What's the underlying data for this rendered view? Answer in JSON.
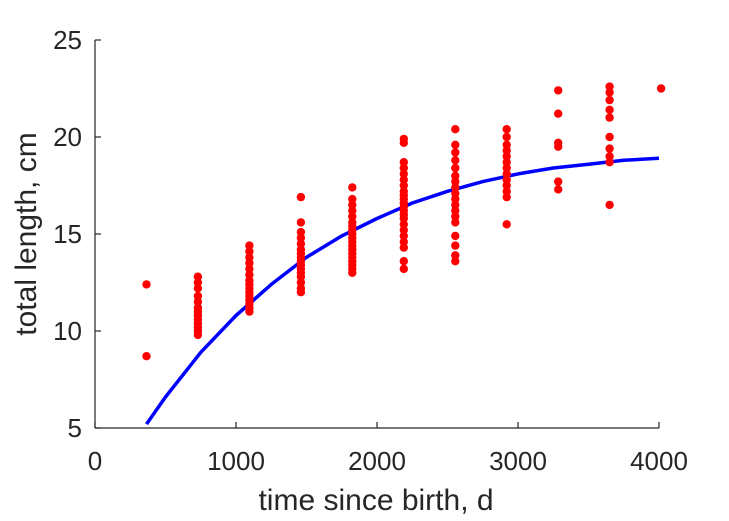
{
  "chart_data": {
    "type": "scatter",
    "title": "",
    "xlabel": "time since birth, d",
    "ylabel": "total length, cm",
    "xlim": [
      0,
      4000
    ],
    "ylim": [
      5,
      25
    ],
    "xticks": [
      0,
      1000,
      2000,
      3000,
      4000
    ],
    "yticks": [
      5,
      10,
      15,
      20,
      25
    ],
    "grid": false,
    "colors": {
      "points": "#ff0000",
      "curve": "#0000ff",
      "axis": "#262626"
    },
    "series": [
      {
        "kind": "scatter",
        "points": [
          [
            365,
            12.4
          ],
          [
            365,
            8.7
          ],
          [
            730,
            12.8
          ],
          [
            730,
            12.5
          ],
          [
            730,
            12.2
          ],
          [
            730,
            11.8
          ],
          [
            730,
            11.5
          ],
          [
            730,
            11.2
          ],
          [
            730,
            11.0
          ],
          [
            730,
            10.8
          ],
          [
            730,
            10.6
          ],
          [
            730,
            10.4
          ],
          [
            730,
            10.2
          ],
          [
            730,
            10.0
          ],
          [
            730,
            9.8
          ],
          [
            1095,
            14.4
          ],
          [
            1095,
            14.1
          ],
          [
            1095,
            13.8
          ],
          [
            1095,
            13.5
          ],
          [
            1095,
            13.2
          ],
          [
            1095,
            12.9
          ],
          [
            1095,
            12.6
          ],
          [
            1095,
            12.4
          ],
          [
            1095,
            12.2
          ],
          [
            1095,
            12.0
          ],
          [
            1095,
            11.8
          ],
          [
            1095,
            11.6
          ],
          [
            1095,
            11.4
          ],
          [
            1095,
            11.2
          ],
          [
            1095,
            11.0
          ],
          [
            1460,
            16.9
          ],
          [
            1460,
            15.6
          ],
          [
            1460,
            15.1
          ],
          [
            1460,
            14.8
          ],
          [
            1460,
            14.5
          ],
          [
            1460,
            14.2
          ],
          [
            1460,
            14.0
          ],
          [
            1460,
            13.8
          ],
          [
            1460,
            13.6
          ],
          [
            1460,
            13.4
          ],
          [
            1460,
            13.2
          ],
          [
            1460,
            13.0
          ],
          [
            1460,
            12.8
          ],
          [
            1460,
            12.5
          ],
          [
            1460,
            12.2
          ],
          [
            1460,
            12.0
          ],
          [
            1825,
            17.4
          ],
          [
            1825,
            16.8
          ],
          [
            1825,
            16.5
          ],
          [
            1825,
            16.2
          ],
          [
            1825,
            15.9
          ],
          [
            1825,
            15.6
          ],
          [
            1825,
            15.4
          ],
          [
            1825,
            15.2
          ],
          [
            1825,
            15.0
          ],
          [
            1825,
            14.8
          ],
          [
            1825,
            14.6
          ],
          [
            1825,
            14.4
          ],
          [
            1825,
            14.2
          ],
          [
            1825,
            14.0
          ],
          [
            1825,
            13.8
          ],
          [
            1825,
            13.6
          ],
          [
            1825,
            13.4
          ],
          [
            1825,
            13.2
          ],
          [
            1825,
            13.0
          ],
          [
            2190,
            19.9
          ],
          [
            2190,
            19.7
          ],
          [
            2190,
            18.7
          ],
          [
            2190,
            18.4
          ],
          [
            2190,
            18.1
          ],
          [
            2190,
            17.8
          ],
          [
            2190,
            17.5
          ],
          [
            2190,
            17.2
          ],
          [
            2190,
            17.0
          ],
          [
            2190,
            16.8
          ],
          [
            2190,
            16.6
          ],
          [
            2190,
            16.4
          ],
          [
            2190,
            16.2
          ],
          [
            2190,
            16.0
          ],
          [
            2190,
            15.8
          ],
          [
            2190,
            15.5
          ],
          [
            2190,
            15.2
          ],
          [
            2190,
            14.9
          ],
          [
            2190,
            14.6
          ],
          [
            2190,
            14.3
          ],
          [
            2190,
            13.6
          ],
          [
            2190,
            13.2
          ],
          [
            2555,
            20.4
          ],
          [
            2555,
            19.6
          ],
          [
            2555,
            19.2
          ],
          [
            2555,
            18.8
          ],
          [
            2555,
            18.4
          ],
          [
            2555,
            18.0
          ],
          [
            2555,
            17.7
          ],
          [
            2555,
            17.4
          ],
          [
            2555,
            17.1
          ],
          [
            2555,
            16.8
          ],
          [
            2555,
            16.5
          ],
          [
            2555,
            16.2
          ],
          [
            2555,
            15.9
          ],
          [
            2555,
            15.6
          ],
          [
            2555,
            14.9
          ],
          [
            2555,
            14.4
          ],
          [
            2555,
            13.9
          ],
          [
            2555,
            13.6
          ],
          [
            2920,
            20.4
          ],
          [
            2920,
            20.0
          ],
          [
            2920,
            19.6
          ],
          [
            2920,
            19.3
          ],
          [
            2920,
            19.0
          ],
          [
            2920,
            18.7
          ],
          [
            2920,
            18.4
          ],
          [
            2920,
            18.1
          ],
          [
            2920,
            17.8
          ],
          [
            2920,
            17.5
          ],
          [
            2920,
            17.2
          ],
          [
            2920,
            16.9
          ],
          [
            2920,
            15.5
          ],
          [
            3285,
            22.4
          ],
          [
            3285,
            21.2
          ],
          [
            3285,
            19.7
          ],
          [
            3285,
            19.5
          ],
          [
            3285,
            17.7
          ],
          [
            3285,
            17.3
          ],
          [
            3650,
            22.6
          ],
          [
            3650,
            22.3
          ],
          [
            3650,
            21.9
          ],
          [
            3650,
            21.4
          ],
          [
            3650,
            21.0
          ],
          [
            3650,
            20.0
          ],
          [
            3650,
            19.4
          ],
          [
            3650,
            19.0
          ],
          [
            3650,
            18.7
          ],
          [
            3650,
            16.5
          ],
          [
            4015,
            22.5
          ]
        ]
      },
      {
        "kind": "line",
        "points": [
          [
            365,
            5.2
          ],
          [
            500,
            6.6
          ],
          [
            750,
            8.9
          ],
          [
            1000,
            10.8
          ],
          [
            1250,
            12.4
          ],
          [
            1500,
            13.8
          ],
          [
            1750,
            14.9
          ],
          [
            2000,
            15.8
          ],
          [
            2250,
            16.6
          ],
          [
            2500,
            17.2
          ],
          [
            2750,
            17.7
          ],
          [
            3000,
            18.1
          ],
          [
            3250,
            18.4
          ],
          [
            3500,
            18.6
          ],
          [
            3750,
            18.8
          ],
          [
            4000,
            18.9
          ]
        ]
      }
    ]
  }
}
